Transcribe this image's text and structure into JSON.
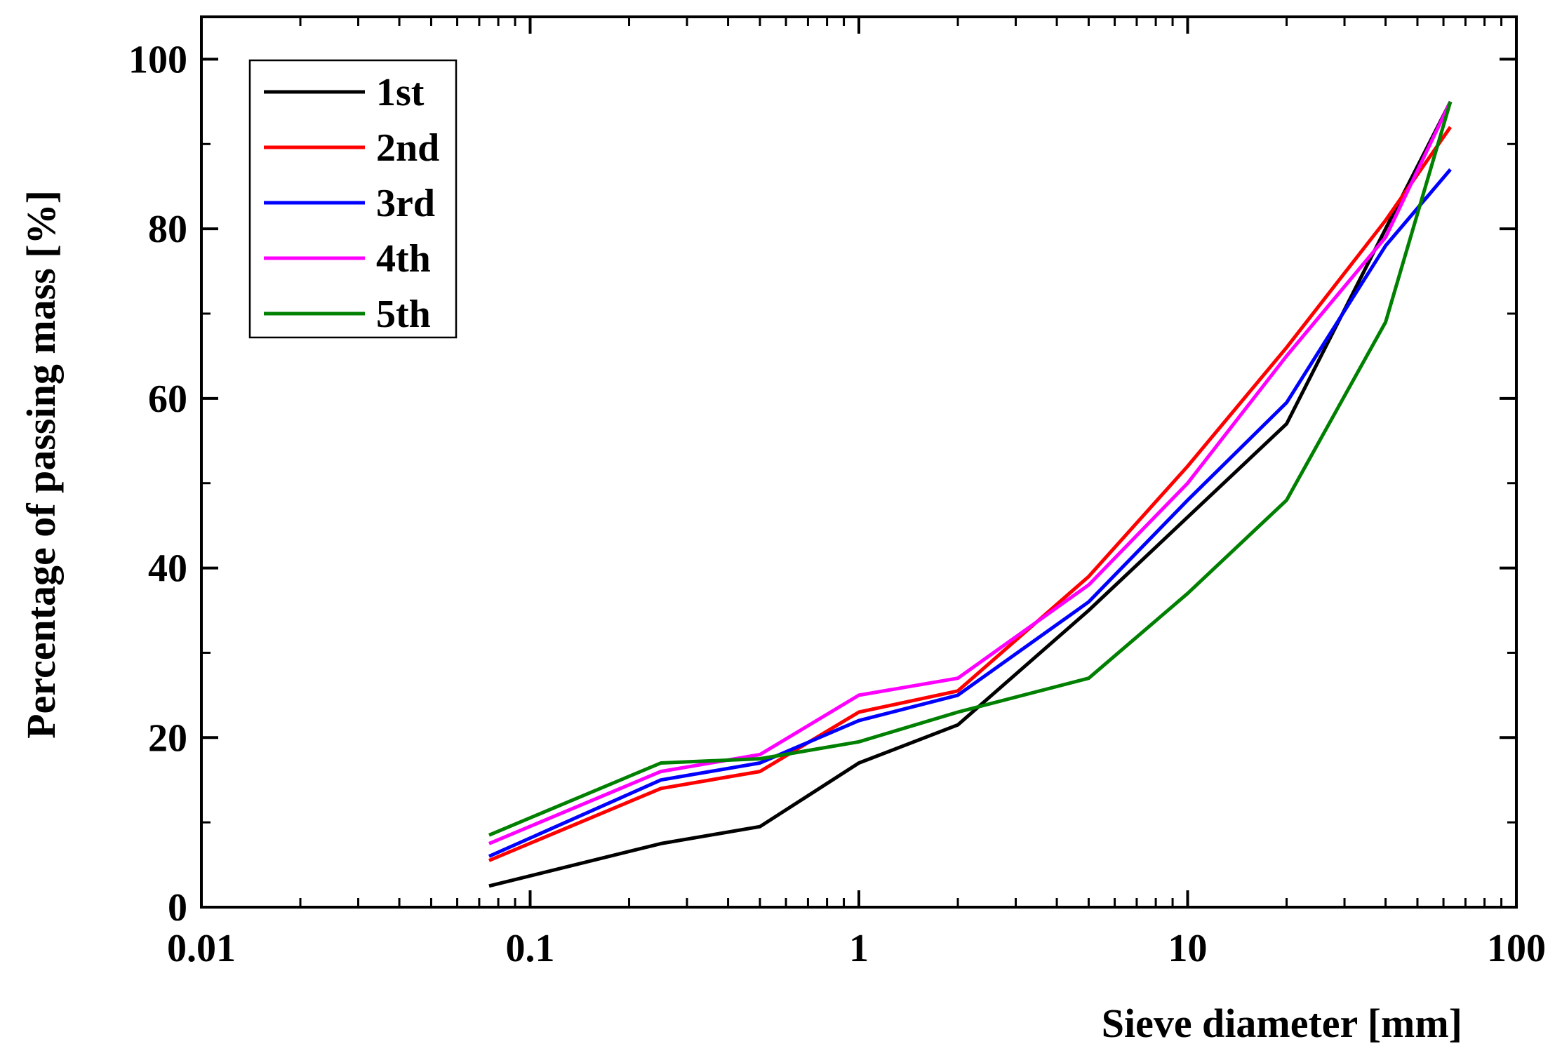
{
  "chart_data": {
    "type": "line",
    "title": "",
    "xlabel": "Sieve diameter [mm]",
    "ylabel": "Percentage of passing mass [%]",
    "xscale": "log",
    "xlim": [
      0.01,
      100
    ],
    "ylim": [
      0,
      105
    ],
    "xticks": [
      0.01,
      0.1,
      1,
      10,
      100
    ],
    "xtick_labels": [
      "0.01",
      "0.1",
      "1",
      "10",
      "100"
    ],
    "yticks": [
      0,
      20,
      40,
      60,
      80,
      100
    ],
    "ytick_labels": [
      "0",
      "20",
      "40",
      "60",
      "80",
      "100"
    ],
    "legend_position": "top-left",
    "x": [
      0.075,
      0.25,
      0.5,
      1,
      2,
      5,
      10,
      20,
      40,
      63
    ],
    "series": [
      {
        "name": "1st",
        "color": "#000000",
        "values": [
          2.5,
          7.5,
          9.5,
          17,
          21.5,
          35,
          46,
          57,
          80,
          95
        ]
      },
      {
        "name": "2nd",
        "color": "#ff0000",
        "values": [
          5.5,
          14,
          16,
          23,
          25.5,
          39,
          52,
          66,
          81,
          92
        ]
      },
      {
        "name": "3rd",
        "color": "#0000ff",
        "values": [
          6,
          15,
          17,
          22,
          25,
          36,
          48,
          59.5,
          78,
          87
        ]
      },
      {
        "name": "4th",
        "color": "#ff00ff",
        "values": [
          7.5,
          16,
          18,
          25,
          27,
          38,
          50,
          65,
          79,
          95
        ]
      },
      {
        "name": "5th",
        "color": "#008000",
        "values": [
          8.5,
          17,
          17.5,
          19.5,
          23,
          27,
          37,
          48,
          69,
          95
        ]
      }
    ]
  }
}
